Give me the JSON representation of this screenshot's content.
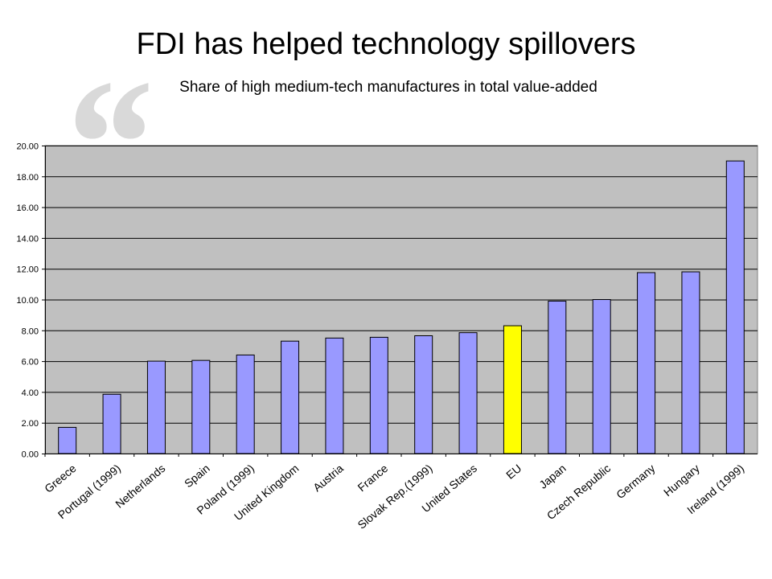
{
  "slide": {
    "title": "FDI has helped technology spillovers",
    "subtitle": "Share of high medium-tech manufactures in total value-added",
    "decoration": "quote-mark"
  },
  "colors": {
    "plot_background": "#c0c0c0",
    "bar_default": "#9999ff",
    "bar_highlight": "#ffff00",
    "bar_stroke": "#000000",
    "gridline": "#000000"
  },
  "chart_data": {
    "type": "bar",
    "title": "",
    "xlabel": "",
    "ylabel": "",
    "ylim": [
      0,
      20
    ],
    "grid": true,
    "legend": "none",
    "yticks": [
      "0.00",
      "2.00",
      "4.00",
      "6.00",
      "8.00",
      "10.00",
      "12.00",
      "14.00",
      "16.00",
      "18.00",
      "20.00"
    ],
    "categories": [
      "Greece",
      "Portugal (1999)",
      "Netherlands",
      "Spain",
      "Poland (1999)",
      "United Kingdom",
      "Austria",
      "France",
      "Slovak Rep.(1999)",
      "United States",
      "EU",
      "Japan",
      "Czech Republic",
      "Germany",
      "Hungary",
      "Ireland (1999)"
    ],
    "values": [
      1.7,
      3.85,
      6.0,
      6.05,
      6.4,
      7.3,
      7.5,
      7.55,
      7.65,
      7.85,
      8.3,
      9.9,
      10.0,
      11.75,
      11.8,
      19.0
    ],
    "highlight": [
      "EU"
    ]
  }
}
